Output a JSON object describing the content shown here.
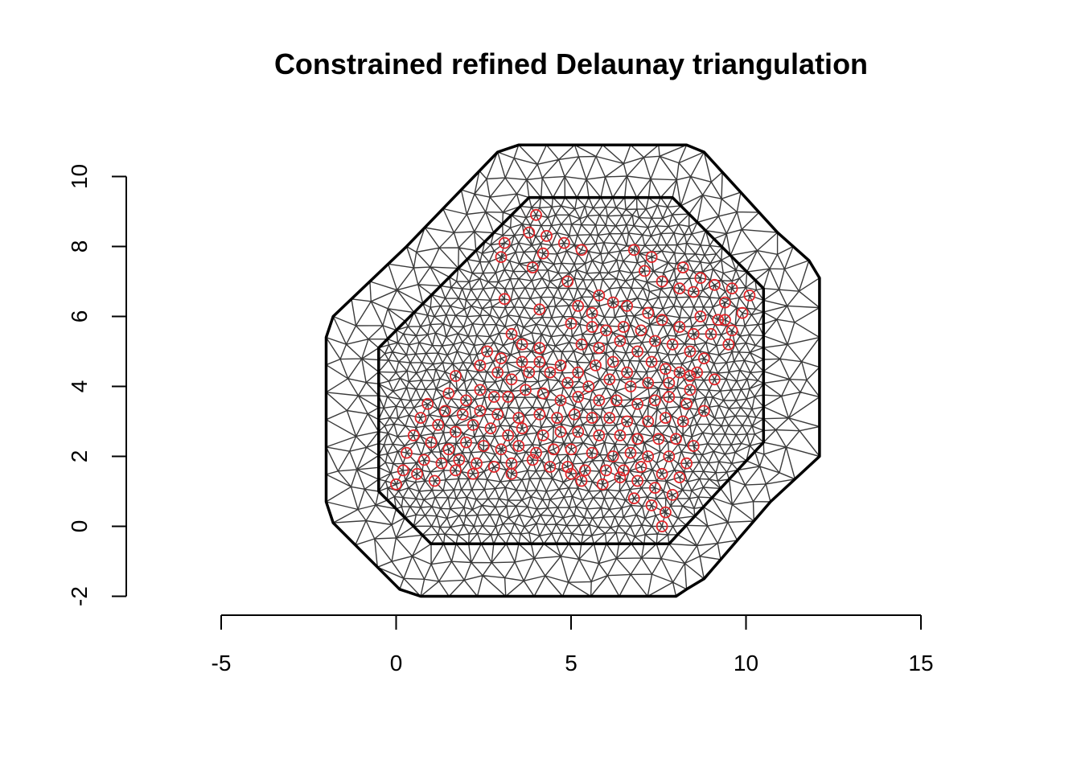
{
  "chart_data": {
    "type": "scatter",
    "title": "Constrained refined Delaunay triangulation",
    "xlabel": "",
    "ylabel": "",
    "xlim": [
      -5,
      15
    ],
    "ylim": [
      -2,
      10
    ],
    "x_ticks": [
      "-5",
      "0",
      "5",
      "10",
      "15"
    ],
    "y_ticks": [
      "-2",
      "0",
      "2",
      "4",
      "6",
      "8",
      "10"
    ],
    "grid": false,
    "legend": "none",
    "outer_boundary": [
      [
        -2,
        5.4
      ],
      [
        -1.8,
        6
      ],
      [
        0.3,
        8
      ],
      [
        2.9,
        10.7
      ],
      [
        3.5,
        10.9
      ],
      [
        8.3,
        10.9
      ],
      [
        8.8,
        10.7
      ],
      [
        10.9,
        8.4
      ],
      [
        11.8,
        7.6
      ],
      [
        12.1,
        7.1
      ],
      [
        12.1,
        2
      ],
      [
        10.7,
        0.7
      ],
      [
        8.8,
        -1.5
      ],
      [
        8.3,
        -1.8
      ],
      [
        8,
        -2
      ],
      [
        0.7,
        -2
      ],
      [
        0.1,
        -1.8
      ],
      [
        -1.8,
        0.1
      ],
      [
        -2,
        0.7
      ]
    ],
    "inner_boundary": [
      [
        -0.5,
        1
      ],
      [
        -0.5,
        5.1
      ],
      [
        3.8,
        9.4
      ],
      [
        7.9,
        9.4
      ],
      [
        10.5,
        6.8
      ],
      [
        10.5,
        2.4
      ],
      [
        7.8,
        -0.5
      ],
      [
        1,
        -0.5
      ]
    ],
    "points": [
      [
        4,
        8.9
      ],
      [
        3.8,
        8.4
      ],
      [
        4.3,
        8.3
      ],
      [
        3.1,
        8.1
      ],
      [
        4.8,
        8.1
      ],
      [
        5.3,
        7.9
      ],
      [
        3,
        7.7
      ],
      [
        4.2,
        7.8
      ],
      [
        3.9,
        7.4
      ],
      [
        4.9,
        7
      ],
      [
        6.8,
        7.9
      ],
      [
        7.3,
        7.7
      ],
      [
        7.1,
        7.3
      ],
      [
        7.6,
        7
      ],
      [
        8.2,
        7.4
      ],
      [
        8.7,
        7.1
      ],
      [
        9.1,
        6.9
      ],
      [
        9.6,
        6.8
      ],
      [
        10.1,
        6.6
      ],
      [
        8.1,
        6.8
      ],
      [
        8.5,
        6.7
      ],
      [
        9.4,
        6.4
      ],
      [
        9.9,
        6.1
      ],
      [
        9.4,
        5.9
      ],
      [
        9.6,
        5.6
      ],
      [
        9.5,
        5.2
      ],
      [
        3.1,
        6.5
      ],
      [
        4.1,
        6.2
      ],
      [
        5.2,
        6.3
      ],
      [
        5.8,
        6.6
      ],
      [
        6.2,
        6.4
      ],
      [
        6.6,
        6.3
      ],
      [
        5.6,
        6.1
      ],
      [
        7.2,
        6.1
      ],
      [
        7.6,
        5.9
      ],
      [
        8.1,
        5.7
      ],
      [
        8.7,
        6
      ],
      [
        8.5,
        5.5
      ],
      [
        9,
        5.5
      ],
      [
        9.2,
        5.9
      ],
      [
        5,
        5.8
      ],
      [
        5.6,
        5.7
      ],
      [
        6,
        5.6
      ],
      [
        6.5,
        5.7
      ],
      [
        7,
        5.6
      ],
      [
        3.3,
        5.5
      ],
      [
        3.6,
        5.2
      ],
      [
        4.1,
        5.1
      ],
      [
        5.3,
        5.2
      ],
      [
        5.8,
        5.1
      ],
      [
        6.4,
        5.3
      ],
      [
        6.9,
        5
      ],
      [
        7.4,
        5.3
      ],
      [
        7.9,
        5.2
      ],
      [
        8.4,
        5
      ],
      [
        8.8,
        4.8
      ],
      [
        2.6,
        5
      ],
      [
        3,
        4.8
      ],
      [
        3.6,
        4.7
      ],
      [
        4.1,
        4.7
      ],
      [
        4.7,
        4.6
      ],
      [
        5.2,
        4.4
      ],
      [
        5.7,
        4.6
      ],
      [
        6.2,
        4.7
      ],
      [
        6.6,
        4.4
      ],
      [
        7.3,
        4.7
      ],
      [
        7.7,
        4.5
      ],
      [
        8.1,
        4.4
      ],
      [
        8.6,
        4.4
      ],
      [
        9.1,
        4.2
      ],
      [
        1.7,
        4.3
      ],
      [
        2.4,
        4.6
      ],
      [
        2.9,
        4.4
      ],
      [
        3.3,
        4.2
      ],
      [
        3.8,
        4.4
      ],
      [
        4.4,
        4.4
      ],
      [
        4.9,
        4.1
      ],
      [
        5.5,
        4
      ],
      [
        6.1,
        4.2
      ],
      [
        6.7,
        4
      ],
      [
        7.2,
        4.1
      ],
      [
        7.8,
        4.1
      ],
      [
        8.4,
        4.3
      ],
      [
        8.4,
        3.9
      ],
      [
        1.5,
        3.8
      ],
      [
        2,
        3.6
      ],
      [
        2.4,
        3.9
      ],
      [
        2.8,
        3.7
      ],
      [
        3.2,
        3.7
      ],
      [
        3.7,
        3.9
      ],
      [
        4.2,
        3.8
      ],
      [
        4.7,
        3.6
      ],
      [
        5.2,
        3.7
      ],
      [
        5.8,
        3.6
      ],
      [
        6.3,
        3.6
      ],
      [
        6.9,
        3.5
      ],
      [
        7.4,
        3.6
      ],
      [
        7.8,
        3.7
      ],
      [
        8.3,
        3.5
      ],
      [
        8.8,
        3.3
      ],
      [
        0.9,
        3.5
      ],
      [
        1.4,
        3.3
      ],
      [
        1.9,
        3.2
      ],
      [
        2.4,
        3.3
      ],
      [
        2.9,
        3.2
      ],
      [
        3.5,
        3.1
      ],
      [
        4.1,
        3.2
      ],
      [
        4.6,
        3.1
      ],
      [
        5.1,
        3.2
      ],
      [
        5.6,
        3.1
      ],
      [
        6.1,
        3.1
      ],
      [
        6.6,
        3
      ],
      [
        7.2,
        3
      ],
      [
        7.7,
        3.1
      ],
      [
        8.2,
        3
      ],
      [
        0.7,
        3.1
      ],
      [
        1.2,
        2.9
      ],
      [
        1.7,
        2.7
      ],
      [
        2.2,
        2.9
      ],
      [
        2.7,
        2.8
      ],
      [
        3.2,
        2.6
      ],
      [
        3.6,
        2.8
      ],
      [
        4.2,
        2.6
      ],
      [
        4.7,
        2.7
      ],
      [
        5.2,
        2.7
      ],
      [
        5.8,
        2.6
      ],
      [
        6.4,
        2.6
      ],
      [
        6.9,
        2.5
      ],
      [
        7.5,
        2.5
      ],
      [
        8,
        2.5
      ],
      [
        8.5,
        2.3
      ],
      [
        0.5,
        2.6
      ],
      [
        1,
        2.4
      ],
      [
        1.5,
        2.2
      ],
      [
        2,
        2.4
      ],
      [
        2.5,
        2.3
      ],
      [
        3,
        2.2
      ],
      [
        3.5,
        2.3
      ],
      [
        4,
        2.1
      ],
      [
        4.5,
        2.2
      ],
      [
        5,
        2.2
      ],
      [
        5.6,
        2.1
      ],
      [
        6.2,
        2
      ],
      [
        6.7,
        2.1
      ],
      [
        7.2,
        2
      ],
      [
        7.8,
        2
      ],
      [
        8.3,
        1.8
      ],
      [
        0.3,
        2.1
      ],
      [
        0.8,
        1.9
      ],
      [
        1.3,
        1.8
      ],
      [
        1.8,
        1.9
      ],
      [
        2.3,
        1.8
      ],
      [
        2.8,
        1.7
      ],
      [
        3.3,
        1.8
      ],
      [
        3.9,
        1.9
      ],
      [
        4.4,
        1.7
      ],
      [
        4.9,
        1.7
      ],
      [
        5.4,
        1.6
      ],
      [
        6,
        1.6
      ],
      [
        6.5,
        1.6
      ],
      [
        7,
        1.7
      ],
      [
        7.6,
        1.5
      ],
      [
        8.1,
        1.4
      ],
      [
        0.2,
        1.6
      ],
      [
        0.6,
        1.5
      ],
      [
        1.1,
        1.3
      ],
      [
        1.7,
        1.6
      ],
      [
        2.2,
        1.5
      ],
      [
        3.3,
        1.5
      ],
      [
        5,
        1.5
      ],
      [
        5.3,
        1.3
      ],
      [
        5.9,
        1.2
      ],
      [
        6.4,
        1.4
      ],
      [
        6.9,
        1.3
      ],
      [
        7.4,
        1.1
      ],
      [
        0,
        1.2
      ],
      [
        6.8,
        0.8
      ],
      [
        7.3,
        0.6
      ],
      [
        7.9,
        0.9
      ],
      [
        7.7,
        0.4
      ],
      [
        7.6,
        0
      ]
    ]
  }
}
